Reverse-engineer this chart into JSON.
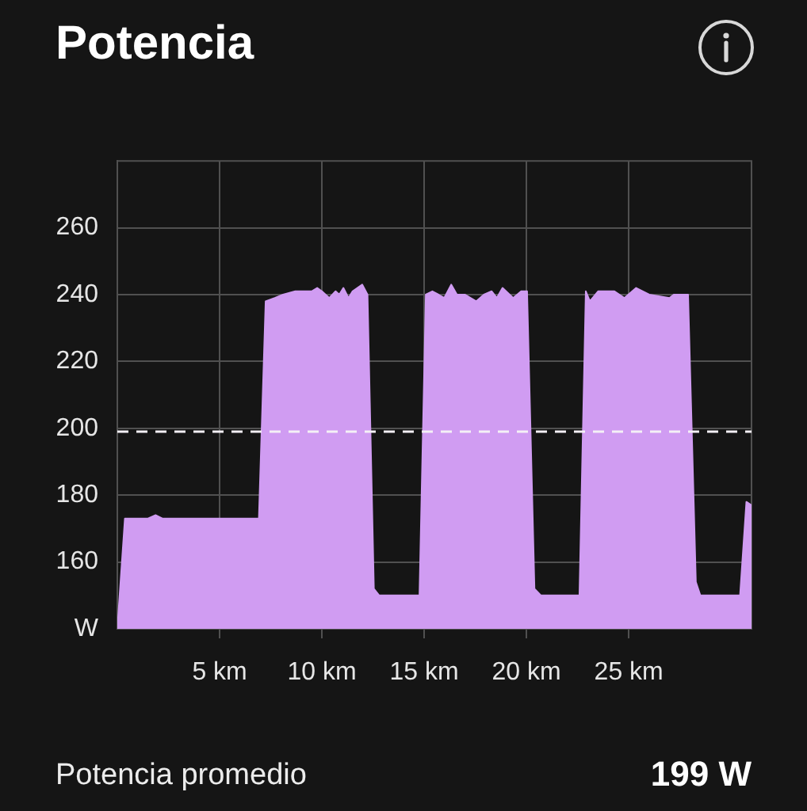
{
  "chart_data": {
    "type": "area",
    "title": "Potencia",
    "x": [
      0,
      0.37,
      1.5,
      1.87,
      2.2,
      6.92,
      7.25,
      7.7,
      8.1,
      8.7,
      9.5,
      9.77,
      10.0,
      10.36,
      10.67,
      10.85,
      11.05,
      11.3,
      11.5,
      11.97,
      12.23,
      12.54,
      12.8,
      14.77,
      15.08,
      15.4,
      15.7,
      15.98,
      16.32,
      16.6,
      17.0,
      17.54,
      17.92,
      18.3,
      18.55,
      18.83,
      19.35,
      19.74,
      20.03,
      20.39,
      20.7,
      22.59,
      22.9,
      23.1,
      23.5,
      24.3,
      24.79,
      25.36,
      26.0,
      26.99,
      27.2,
      27.9,
      28.28,
      28.5,
      30.44,
      30.75,
      31
    ],
    "series": [
      {
        "color": "#d09cf2",
        "values": [
          140,
          173,
          173,
          174,
          173,
          173,
          238,
          239,
          240,
          241,
          241,
          242,
          241,
          239,
          241,
          240,
          242,
          239,
          241,
          243,
          240,
          152,
          150,
          150,
          240,
          241,
          240,
          239,
          243,
          240,
          240,
          238,
          240,
          241,
          239,
          242,
          239,
          241,
          241,
          152,
          150,
          150,
          241,
          238,
          241,
          241,
          239,
          242,
          240,
          239,
          240,
          240,
          154,
          150,
          150,
          178,
          177
        ]
      }
    ],
    "xlim": [
      0,
      31
    ],
    "xticks": [
      {
        "value": 5,
        "label": "5 km"
      },
      {
        "value": 10,
        "label": "10 km"
      },
      {
        "value": 15,
        "label": "15 km"
      },
      {
        "value": 20,
        "label": "20 km"
      },
      {
        "value": 25,
        "label": "25 km"
      }
    ],
    "ylim": [
      140,
      280
    ],
    "yticks": [
      {
        "value": 140,
        "label": "W"
      },
      160,
      180,
      200,
      220,
      240,
      260
    ],
    "grid": true,
    "legend": false,
    "marker": "none",
    "ref_lines": [
      {
        "axis": "y",
        "value": 199,
        "color": "#f4f0f6",
        "line_style": "dashed"
      }
    ],
    "annotations": [
      "Potencia promedio",
      "199 W"
    ]
  }
}
